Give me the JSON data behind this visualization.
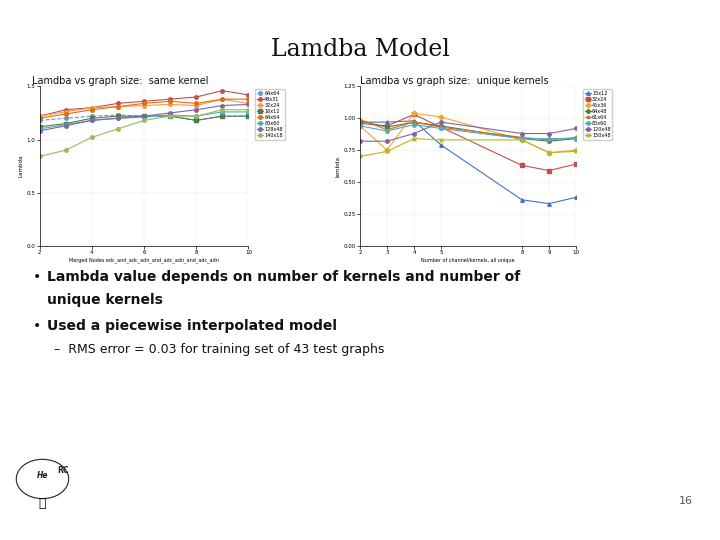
{
  "title": "Lamdba Model",
  "slide_bg": "#ffffff",
  "title_color": "#111111",
  "accent_color": "#7b1a2e",
  "slide_number": "16",
  "left_subtitle": "Lamdba vs graph size:  same kernel",
  "right_subtitle": "Lamdba vs graph size:  unique kernels",
  "left_xlabel": "Merged Nodes edc_and_adc_adn_and_adc_adn_and_adc_adn",
  "left_ylabel": "Lambda",
  "left_xlim": [
    2,
    10
  ],
  "left_ylim": [
    0,
    1.5
  ],
  "left_yticks": [
    0,
    0.5,
    1.0,
    1.5
  ],
  "left_xticks": [
    2,
    4,
    6,
    8,
    10
  ],
  "right_xlabel": "Number of channel/kernels, all unique",
  "right_ylabel": "lambda",
  "right_xlim": [
    2,
    10
  ],
  "right_ylim": [
    0,
    1.25
  ],
  "right_yticks": [
    0,
    0.25,
    0.5,
    0.75,
    1.0,
    1.25
  ],
  "right_xticks": [
    2,
    3,
    4,
    5,
    8,
    9,
    10
  ],
  "left_series": [
    {
      "label": "64x64",
      "color": "#5a9bd5",
      "marker": "o",
      "linestyle": "--",
      "x": [
        2,
        3,
        4,
        5,
        6,
        7,
        8,
        9,
        10
      ],
      "y": [
        1.18,
        1.2,
        1.22,
        1.23,
        1.22,
        1.22,
        1.18,
        1.22,
        1.22
      ]
    },
    {
      "label": "48x31",
      "color": "#c0504d",
      "marker": "o",
      "linestyle": "-",
      "x": [
        2,
        3,
        4,
        5,
        6,
        7,
        8,
        9,
        10
      ],
      "y": [
        1.22,
        1.28,
        1.3,
        1.34,
        1.36,
        1.38,
        1.4,
        1.46,
        1.42
      ]
    },
    {
      "label": "32x24",
      "color": "#f79646",
      "marker": "o",
      "linestyle": "-",
      "x": [
        2,
        3,
        4,
        5,
        6,
        7,
        8,
        9,
        10
      ],
      "y": [
        1.22,
        1.26,
        1.3,
        1.31,
        1.32,
        1.33,
        1.32,
        1.38,
        1.34
      ]
    },
    {
      "label": "16x12",
      "color": "#4e7c4f",
      "marker": "s",
      "linestyle": "-",
      "x": [
        2,
        3,
        4,
        5,
        6,
        7,
        8,
        9,
        10
      ],
      "y": [
        1.12,
        1.15,
        1.2,
        1.22,
        1.22,
        1.22,
        1.18,
        1.22,
        1.22
      ]
    },
    {
      "label": "64x64",
      "color": "#e36c09",
      "marker": "o",
      "linestyle": "-",
      "x": [
        2,
        3,
        4,
        5,
        6,
        7,
        8,
        9,
        10
      ],
      "y": [
        1.2,
        1.24,
        1.28,
        1.31,
        1.34,
        1.36,
        1.34,
        1.38,
        1.38
      ]
    },
    {
      "label": "80x60",
      "color": "#4bacc6",
      "marker": "o",
      "linestyle": "-",
      "x": [
        2,
        3,
        4,
        5,
        6,
        7,
        8,
        9,
        10
      ],
      "y": [
        1.1,
        1.14,
        1.18,
        1.2,
        1.21,
        1.23,
        1.22,
        1.26,
        1.26
      ]
    },
    {
      "label": "128x48",
      "color": "#8064a2",
      "marker": "o",
      "linestyle": "-",
      "x": [
        2,
        3,
        4,
        5,
        6,
        7,
        8,
        9,
        10
      ],
      "y": [
        1.08,
        1.13,
        1.18,
        1.2,
        1.22,
        1.25,
        1.28,
        1.32,
        1.33
      ]
    },
    {
      "label": "140x18",
      "color": "#9bbb59",
      "marker": "o",
      "linestyle": "-",
      "x": [
        2,
        3,
        4,
        5,
        6,
        7,
        8,
        9,
        10
      ],
      "y": [
        0.84,
        0.9,
        1.02,
        1.1,
        1.18,
        1.22,
        1.22,
        1.28,
        1.28
      ]
    }
  ],
  "right_series": [
    {
      "label": "15x12",
      "color": "#4472c4",
      "marker": "^",
      "linestyle": "-",
      "x": [
        2,
        3,
        4,
        5,
        8,
        9,
        10
      ],
      "y": [
        0.97,
        0.97,
        0.98,
        0.79,
        0.36,
        0.33,
        0.38
      ]
    },
    {
      "label": "32x24",
      "color": "#c0504d",
      "marker": "s",
      "linestyle": "-",
      "x": [
        2,
        3,
        4,
        5,
        8,
        9,
        10
      ],
      "y": [
        0.96,
        0.94,
        1.03,
        0.93,
        0.63,
        0.59,
        0.64
      ]
    },
    {
      "label": "45x36",
      "color": "#f0a830",
      "marker": "D",
      "linestyle": "-",
      "x": [
        2,
        3,
        4,
        5,
        8,
        9,
        10
      ],
      "y": [
        0.94,
        0.75,
        1.04,
        1.01,
        0.83,
        0.73,
        0.75
      ]
    },
    {
      "label": "64x48",
      "color": "#4e7c4f",
      "marker": "o",
      "linestyle": "-",
      "x": [
        2,
        3,
        4,
        5,
        8,
        9,
        10
      ],
      "y": [
        0.98,
        0.93,
        0.97,
        0.94,
        0.84,
        0.82,
        0.84
      ]
    },
    {
      "label": "61x64",
      "color": "#e36c09",
      "marker": "*",
      "linestyle": "-",
      "x": [
        2,
        3,
        4,
        5,
        8,
        9,
        10
      ],
      "y": [
        0.99,
        0.91,
        0.97,
        0.93,
        0.85,
        0.83,
        0.85
      ]
    },
    {
      "label": "80x60",
      "color": "#4bacc6",
      "marker": "o",
      "linestyle": "-",
      "x": [
        2,
        3,
        4,
        5,
        8,
        9,
        10
      ],
      "y": [
        0.94,
        0.9,
        0.95,
        0.92,
        0.84,
        0.84,
        0.84
      ]
    },
    {
      "label": "120x48",
      "color": "#8064a2",
      "marker": "o",
      "linestyle": "-",
      "x": [
        2,
        3,
        4,
        5,
        8,
        9,
        10
      ],
      "y": [
        0.82,
        0.82,
        0.88,
        0.97,
        0.88,
        0.88,
        0.92
      ]
    },
    {
      "label": "150x48",
      "color": "#b5b820",
      "marker": "x",
      "linestyle": "-",
      "x": [
        2,
        3,
        4,
        5,
        8,
        9,
        10
      ],
      "y": [
        0.7,
        0.74,
        0.84,
        0.83,
        0.83,
        0.73,
        0.74
      ]
    }
  ],
  "bullet1": "Lambda value depends on number of kernels and number of",
  "bullet1b": "unique kernels",
  "bullet2": "Used a piecewise interpolated model",
  "sub_bullet": "–  RMS error = 0.03 for training set of 43 test graphs"
}
